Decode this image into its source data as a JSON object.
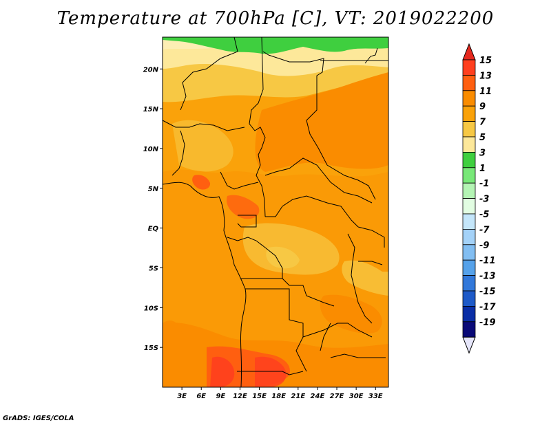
{
  "title": "Temperature at 700hPa [C], VT: 2019022200",
  "credit": "GrADS: IGES/COLA",
  "map": {
    "variable": "Temperature",
    "units": "C",
    "level": "700hPa",
    "valid_time": "2019022200",
    "lon_range": [
      0,
      35
    ],
    "lat_range": [
      -20,
      24
    ],
    "lat_ticks": [
      "20N",
      "15N",
      "10N",
      "5N",
      "EQ",
      "5S",
      "10S",
      "15S"
    ],
    "lat_values": [
      20,
      15,
      10,
      5,
      0,
      -5,
      -10,
      -15
    ],
    "lon_ticks": [
      "3E",
      "6E",
      "9E",
      "12E",
      "15E",
      "18E",
      "21E",
      "24E",
      "27E",
      "30E",
      "33E"
    ],
    "lon_values": [
      3,
      6,
      9,
      12,
      15,
      18,
      21,
      24,
      27,
      30,
      33
    ]
  },
  "colorbar": {
    "labels": [
      "15",
      "13",
      "11",
      "9",
      "7",
      "5",
      "3",
      "1",
      "-1",
      "-3",
      "-5",
      "-7",
      "-9",
      "-11",
      "-13",
      "-15",
      "-17",
      "-19"
    ],
    "colors": [
      "#ff3f1e",
      "#ff5f10",
      "#fa8c00",
      "#faa20a",
      "#f7c844",
      "#fde89a",
      "#3fcf3f",
      "#78e878",
      "#b4f4b4",
      "#e2fde2",
      "#c4e6fa",
      "#a4d2f8",
      "#82bef2",
      "#56a2ea",
      "#3278da",
      "#1e5ac8",
      "#0a2ea6",
      "#0a0a78"
    ],
    "top_arrow_color": "#e6291e",
    "bottom_arrow_color": "#e6e6fa"
  }
}
